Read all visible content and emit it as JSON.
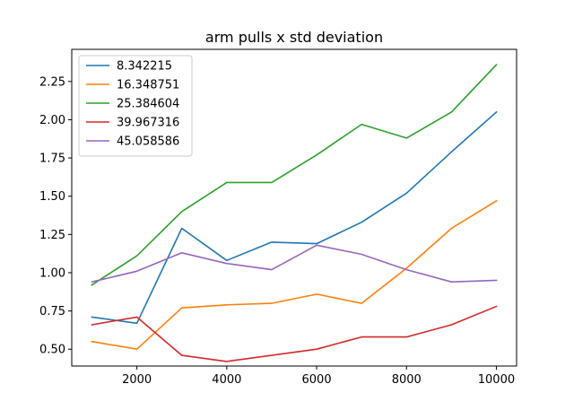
{
  "chart_data": {
    "type": "line",
    "title": "arm pulls x std deviation",
    "xlabel": "",
    "ylabel": "",
    "xlim": [
      550,
      10450
    ],
    "ylim": [
      0.39,
      2.46
    ],
    "xticks": [
      2000,
      4000,
      6000,
      8000,
      10000
    ],
    "xtick_labels": [
      "2000",
      "4000",
      "6000",
      "8000",
      "10000"
    ],
    "yticks": [
      0.5,
      0.75,
      1.0,
      1.25,
      1.5,
      1.75,
      2.0,
      2.25
    ],
    "ytick_labels": [
      "0.50",
      "0.75",
      "1.00",
      "1.25",
      "1.50",
      "1.75",
      "2.00",
      "2.25"
    ],
    "grid": false,
    "legend_position": "top-left",
    "x": [
      1000,
      2000,
      3000,
      4000,
      5000,
      6000,
      7000,
      8000,
      9000,
      10000
    ],
    "series": [
      {
        "name": "8.342215",
        "color": "#1f77b4",
        "values": [
          0.71,
          0.67,
          1.29,
          1.08,
          1.2,
          1.19,
          1.33,
          1.52,
          1.79,
          2.05
        ]
      },
      {
        "name": "16.348751",
        "color": "#ff7f0e",
        "values": [
          0.55,
          0.5,
          0.77,
          0.79,
          0.8,
          0.86,
          0.8,
          1.03,
          1.29,
          1.47
        ]
      },
      {
        "name": "25.384604",
        "color": "#2ca02c",
        "values": [
          0.92,
          1.11,
          1.4,
          1.59,
          1.59,
          1.77,
          1.97,
          1.88,
          2.05,
          2.36
        ]
      },
      {
        "name": "39.967316",
        "color": "#d62728",
        "values": [
          0.66,
          0.71,
          0.46,
          0.42,
          0.46,
          0.5,
          0.58,
          0.58,
          0.66,
          0.78
        ]
      },
      {
        "name": "45.058586",
        "color": "#9467bd",
        "values": [
          0.94,
          1.01,
          1.13,
          1.06,
          1.02,
          1.18,
          1.12,
          1.02,
          0.94,
          0.95
        ]
      }
    ]
  }
}
